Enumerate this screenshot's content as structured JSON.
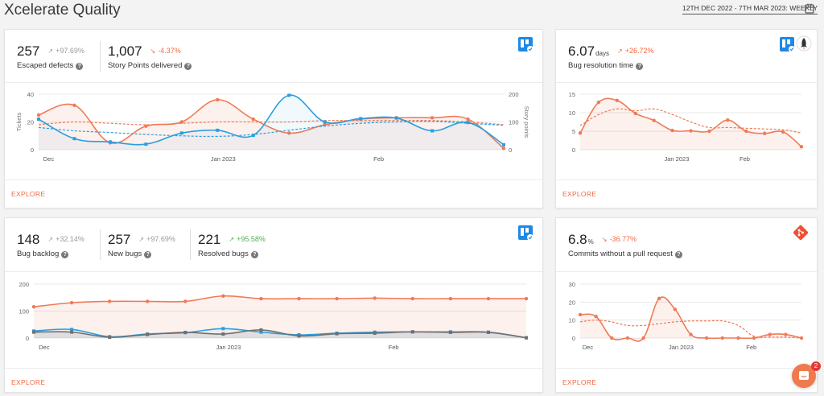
{
  "header": {
    "title": "Xcelerate Quality",
    "date_range": "12TH DEC 2022 - 7TH MAR 2023: WEEKLY"
  },
  "colors": {
    "orange": "#f07a56",
    "blue": "#2a9fe0",
    "grey": "#707070",
    "accent": "#f06a43",
    "green": "#4caf50"
  },
  "cards": {
    "defects": {
      "metrics": [
        {
          "value": "257",
          "trend": "+97.69%",
          "direction": "up",
          "label": "Escaped defects"
        },
        {
          "value": "1,007",
          "trend": "-4.37%",
          "direction": "down",
          "label": "Story Points delivered"
        }
      ],
      "icons": [
        "jira-icon"
      ],
      "explore": "EXPLORE"
    },
    "bug_resolution": {
      "metrics": [
        {
          "value": "6.07",
          "unit": "days",
          "trend": "+26.72%",
          "direction": "up",
          "label": "Bug resolution time"
        }
      ],
      "icons": [
        "jira-icon",
        "rocket-icon"
      ],
      "explore": "EXPLORE"
    },
    "bugs": {
      "metrics": [
        {
          "value": "148",
          "trend": "+32.14%",
          "direction": "up",
          "label": "Bug backlog"
        },
        {
          "value": "257",
          "trend": "+97.69%",
          "direction": "up",
          "label": "New bugs"
        },
        {
          "value": "221",
          "trend": "+95.58%",
          "direction": "up",
          "label": "Resolved bugs"
        }
      ],
      "icons": [
        "jira-icon"
      ],
      "explore": "EXPLORE"
    },
    "commits": {
      "metrics": [
        {
          "value": "6.8",
          "unit": "%",
          "trend": "-36.77%",
          "direction": "down",
          "label": "Commits without a pull request"
        }
      ],
      "icons": [
        "git-icon"
      ],
      "explore": "EXPLORE"
    }
  },
  "chat": {
    "badge": "2"
  },
  "chart_data": [
    {
      "id": "defects",
      "type": "line",
      "x_ticks": [
        "Dec",
        "Jan 2023",
        "Feb"
      ],
      "ylabel": "Tickets",
      "y2label": "Story points",
      "ylim": [
        0,
        40
      ],
      "y_ticks": [
        0,
        20,
        40
      ],
      "y2lim": [
        0,
        200
      ],
      "y2_ticks": [
        0,
        100,
        200
      ],
      "grid": true,
      "series": [
        {
          "axis": "left",
          "color": "orange",
          "values": [
            25,
            32,
            5,
            17,
            20,
            36,
            22,
            12,
            18,
            22,
            23,
            23,
            22,
            1
          ],
          "trend": [
            18,
            20,
            19,
            18,
            19,
            20,
            20,
            20,
            21,
            21,
            21,
            21,
            20,
            18
          ]
        },
        {
          "axis": "right",
          "color": "blue",
          "values": [
            110,
            40,
            28,
            20,
            60,
            70,
            52,
            196,
            100,
            112,
            114,
            68,
            98,
            18
          ],
          "trend": [
            80,
            68,
            62,
            55,
            50,
            48,
            55,
            70,
            85,
            95,
            100,
            102,
            95,
            88
          ]
        }
      ]
    },
    {
      "id": "bug_resolution",
      "type": "line",
      "x_ticks": [
        "Jan 2023",
        "Feb"
      ],
      "ylim": [
        0,
        15
      ],
      "y_ticks": [
        0,
        5,
        10,
        15
      ],
      "grid": true,
      "series": [
        {
          "color": "orange",
          "values": [
            4.5,
            12.8,
            13.3,
            9.8,
            7.9,
            5.2,
            5.1,
            5.0,
            8.0,
            5.0,
            4.4,
            4.8,
            0.8
          ],
          "trend": [
            6.5,
            9.5,
            11,
            10.5,
            11,
            9.5,
            7.5,
            6,
            6,
            5.8,
            5.6,
            5.4,
            4.5
          ]
        }
      ]
    },
    {
      "id": "bugs",
      "type": "line",
      "x_ticks": [
        "Dec",
        "Jan 2023",
        "Feb"
      ],
      "ylim": [
        0,
        200
      ],
      "y_ticks": [
        0,
        100,
        200
      ],
      "grid": true,
      "series": [
        {
          "name": "Bug backlog",
          "color": "orange",
          "values": [
            116,
            131,
            136,
            136,
            136,
            156,
            146,
            146,
            146,
            148,
            146,
            146,
            146,
            146
          ]
        },
        {
          "name": "New bugs",
          "color": "blue",
          "values": [
            26,
            32,
            5,
            15,
            20,
            35,
            22,
            12,
            18,
            22,
            23,
            23,
            22,
            1
          ]
        },
        {
          "name": "Resolved bugs",
          "color": "grey",
          "values": [
            22,
            22,
            3,
            13,
            21,
            15,
            30,
            8,
            16,
            18,
            23,
            21,
            21,
            1
          ]
        }
      ]
    },
    {
      "id": "commits",
      "type": "line",
      "x_ticks": [
        "Dec",
        "Jan 2023",
        "Feb"
      ],
      "ylim": [
        0,
        30
      ],
      "y_ticks": [
        0,
        10,
        20,
        30
      ],
      "grid": true,
      "series": [
        {
          "color": "orange",
          "values": [
            13,
            12,
            0,
            0,
            0,
            22,
            16,
            2,
            0,
            0,
            0,
            0,
            2,
            2,
            0
          ],
          "trend": [
            9,
            10,
            9,
            7,
            7,
            8,
            9,
            9.5,
            9.5,
            9.5,
            7,
            1,
            0.5,
            0.5,
            0
          ]
        }
      ]
    }
  ]
}
